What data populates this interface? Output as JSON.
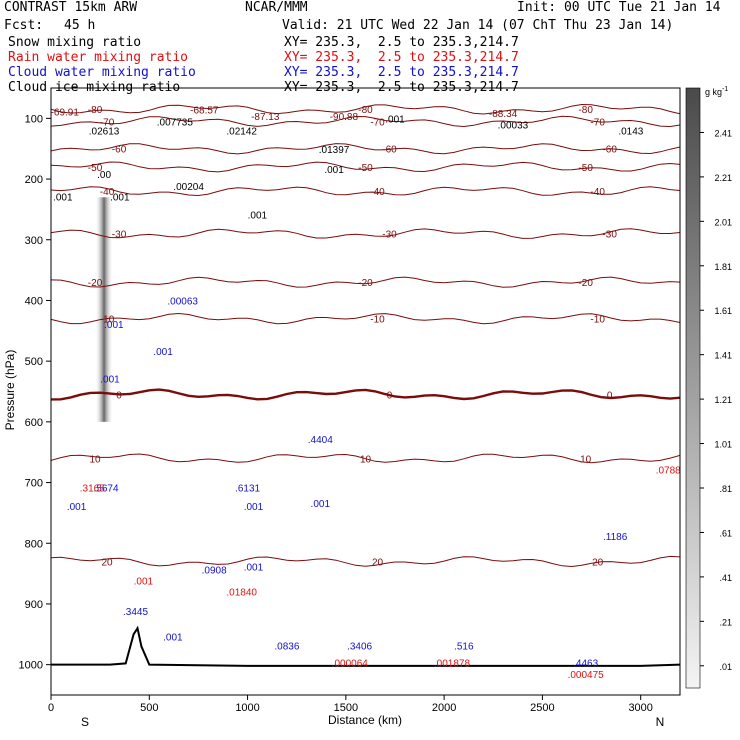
{
  "header": {
    "model": "CONTRAST 15km ARW",
    "org": "NCAR/MMM",
    "init": "Init: 00 UTC Tue 21 Jan 14",
    "fcst_label": "Fcst:",
    "fcst_value": "45 h",
    "valid": "Valid: 21 UTC Wed 22 Jan 14 (07 ChT Thu 23 Jan 14)",
    "fields": [
      {
        "label": "Snow mixing ratio",
        "xy": "XY= 235.3,  2.5 to 235.3,214.7",
        "color": "#000000"
      },
      {
        "label": "Rain water mixing ratio",
        "xy": "XY= 235.3,  2.5 to 235.3,214.7",
        "color": "#dd1111"
      },
      {
        "label": "Cloud water mixing ratio",
        "xy": "XY= 235.3,  2.5 to 235.3,214.7",
        "color": "#1111cc"
      },
      {
        "label": "Cloud ice mixing ratio",
        "xy": "XY= 235.3,  2.5 to 235.3,214.7",
        "color": "#000000"
      }
    ]
  },
  "chart_data": {
    "type": "heatmap",
    "xlabel": "Distance (km)",
    "ylabel": "Pressure (hPa)",
    "xlim": [
      0,
      3200
    ],
    "ylim": [
      1050,
      50
    ],
    "x_ticks": [
      0,
      500,
      1000,
      1500,
      2000,
      2500,
      3000
    ],
    "y_ticks": [
      100,
      200,
      300,
      400,
      500,
      600,
      700,
      800,
      900,
      1000
    ],
    "endpoints": {
      "left": "S",
      "right": "N"
    },
    "colorbar": {
      "unit": "g kg",
      "unit_exp": "-1",
      "levels": [
        "2.41",
        "2.21",
        "2.01",
        "1.81",
        "1.61",
        "1.41",
        "1.21",
        "1.01",
        ".81",
        ".61",
        ".41",
        ".21",
        ".01"
      ]
    },
    "temperature_contours": [
      {
        "label": "-80",
        "p": 85
      },
      {
        "label": "-70",
        "p": 105
      },
      {
        "label": "-60",
        "p": 150
      },
      {
        "label": "-50",
        "p": 180
      },
      {
        "label": "-40",
        "p": 220
      },
      {
        "label": "-30",
        "p": 290
      },
      {
        "label": "-20",
        "p": 370
      },
      {
        "label": "-10",
        "p": 430
      },
      {
        "label": "0",
        "p": 555,
        "bold": true
      },
      {
        "label": "10",
        "p": 660
      },
      {
        "label": "20",
        "p": 830
      }
    ],
    "annotations": [
      {
        "text": "-69.91",
        "x": 70,
        "p": 95,
        "color": "#7a0c0c"
      },
      {
        "text": "-68.57",
        "x": 780,
        "p": 92,
        "color": "#7a0c0c"
      },
      {
        "text": "-87.13",
        "x": 1090,
        "p": 103,
        "color": "#7a0c0c"
      },
      {
        "text": "-90.88",
        "x": 1490,
        "p": 103,
        "color": "#7a0c0c"
      },
      {
        "text": "-88.34",
        "x": 2300,
        "p": 98,
        "color": "#7a0c0c"
      },
      {
        "text": ".02613",
        "x": 270,
        "p": 127,
        "color": "#000000"
      },
      {
        "text": ".007735",
        "x": 630,
        "p": 112,
        "color": "#000000"
      },
      {
        "text": ".02142",
        "x": 970,
        "p": 127,
        "color": "#000000"
      },
      {
        "text": ".001",
        "x": 1750,
        "p": 107,
        "color": "#000000"
      },
      {
        "text": ".00033",
        "x": 2350,
        "p": 117,
        "color": "#000000"
      },
      {
        "text": ".0143",
        "x": 2950,
        "p": 127,
        "color": "#000000"
      },
      {
        "text": ".01397",
        "x": 1440,
        "p": 157,
        "color": "#000000"
      },
      {
        "text": ".001",
        "x": 1440,
        "p": 190,
        "color": "#000000"
      },
      {
        "text": ".00204",
        "x": 700,
        "p": 218,
        "color": "#000000"
      },
      {
        "text": ".001",
        "x": 60,
        "p": 235,
        "color": "#000000"
      },
      {
        "text": ".001",
        "x": 350,
        "p": 235,
        "color": "#000000"
      },
      {
        "text": ".00",
        "x": 270,
        "p": 198,
        "color": "#000000"
      },
      {
        "text": ".001",
        "x": 1050,
        "p": 265,
        "color": "#000000"
      },
      {
        "text": ".00063",
        "x": 670,
        "p": 407,
        "color": "#1111cc"
      },
      {
        "text": ".001",
        "x": 320,
        "p": 445,
        "color": "#1111cc"
      },
      {
        "text": ".001",
        "x": 570,
        "p": 490,
        "color": "#1111cc"
      },
      {
        "text": ".001",
        "x": 300,
        "p": 535,
        "color": "#1111cc"
      },
      {
        "text": ".4404",
        "x": 1370,
        "p": 635,
        "color": "#1111cc"
      },
      {
        "text": ".001",
        "x": 1370,
        "p": 740,
        "color": "#1111cc"
      },
      {
        "text": ".6131",
        "x": 1000,
        "p": 715,
        "color": "#1111cc"
      },
      {
        "text": ".001",
        "x": 1030,
        "p": 745,
        "color": "#1111cc"
      },
      {
        "text": ".5674",
        "x": 280,
        "p": 715,
        "color": "#1111cc"
      },
      {
        "text": ".001",
        "x": 130,
        "p": 745,
        "color": "#1111cc"
      },
      {
        "text": ".0908",
        "x": 830,
        "p": 850,
        "color": "#1111cc"
      },
      {
        "text": ".001",
        "x": 1030,
        "p": 845,
        "color": "#1111cc"
      },
      {
        "text": ".1186",
        "x": 2870,
        "p": 795,
        "color": "#1111cc"
      },
      {
        "text": ".3445",
        "x": 430,
        "p": 918,
        "color": "#1111cc"
      },
      {
        "text": ".001",
        "x": 620,
        "p": 960,
        "color": "#1111cc"
      },
      {
        "text": ".0836",
        "x": 1200,
        "p": 975,
        "color": "#1111cc"
      },
      {
        "text": ".3406",
        "x": 1570,
        "p": 975,
        "color": "#1111cc"
      },
      {
        "text": ".516",
        "x": 2100,
        "p": 975,
        "color": "#1111cc"
      },
      {
        "text": ".4463",
        "x": 2720,
        "p": 1003,
        "color": "#1111cc"
      },
      {
        "text": ".3165",
        "x": 210,
        "p": 715,
        "color": "#dd1111"
      },
      {
        "text": ".001",
        "x": 470,
        "p": 868,
        "color": "#dd1111"
      },
      {
        "text": ".01840",
        "x": 970,
        "p": 886,
        "color": "#dd1111"
      },
      {
        "text": ".000064",
        "x": 1520,
        "p": 1003,
        "color": "#dd1111"
      },
      {
        "text": ".001878",
        "x": 2040,
        "p": 1003,
        "color": "#dd1111"
      },
      {
        "text": ".000475",
        "x": 2720,
        "p": 1022,
        "color": "#dd1111"
      },
      {
        "text": ".0788",
        "x": 3140,
        "p": 685,
        "color": "#dd1111"
      }
    ],
    "shaded_max": [
      {
        "x": 270,
        "p_top": 230,
        "p_bottom": 600
      }
    ],
    "surface_pressure": [
      [
        0,
        1000
      ],
      [
        100,
        1000
      ],
      [
        200,
        1000
      ],
      [
        300,
        1000
      ],
      [
        380,
        998
      ],
      [
        420,
        950
      ],
      [
        440,
        940
      ],
      [
        460,
        970
      ],
      [
        500,
        1000
      ],
      [
        1000,
        1002
      ],
      [
        1500,
        1002
      ],
      [
        2000,
        1002
      ],
      [
        2500,
        1002
      ],
      [
        3000,
        1002
      ],
      [
        3200,
        1000
      ]
    ]
  }
}
